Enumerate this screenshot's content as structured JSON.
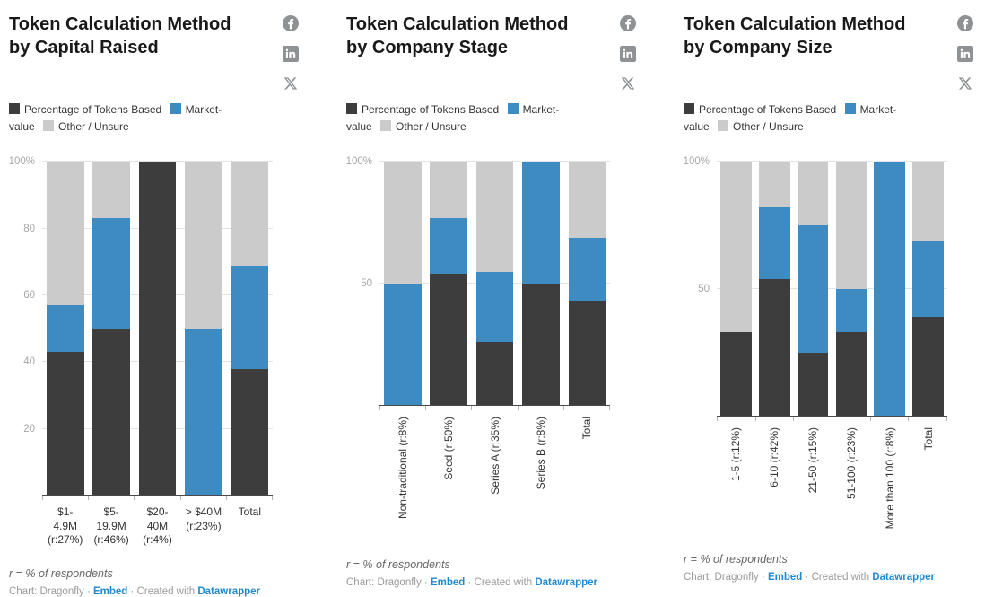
{
  "colors": {
    "tokens_based": "#3d3d3d",
    "market_value": "#3d8bc0",
    "other_unsure": "#cbcbcb",
    "link": "#2089cf",
    "icon_gray": "#8f9295"
  },
  "icons": {
    "facebook": "facebook-circle-icon",
    "linkedin": "linkedin-square-icon",
    "x": "x-logo-icon"
  },
  "charts": [
    {
      "title": "Token Calculation Method\nby Capital Raised",
      "label_rotation": 0,
      "footer": {
        "note": "r = % of respondents",
        "source": "Chart: Dragonfly",
        "sep": "·",
        "embed": "Embed",
        "created_with": "Created with",
        "tool": "Datawrapper"
      },
      "chart_data": {
        "type": "bar",
        "stacked": true,
        "title": "Token Calculation Method by Capital Raised",
        "unit": "%",
        "ylim": [
          0,
          100
        ],
        "legend_position": "top",
        "grid": "horizontal",
        "y_ticks": [
          {
            "value": 100,
            "label": "100%"
          },
          {
            "value": 80,
            "label": "80"
          },
          {
            "value": 60,
            "label": "60"
          },
          {
            "value": 40,
            "label": "40"
          },
          {
            "value": 20,
            "label": "20"
          }
        ],
        "categories": [
          "$1-\n4.9M\n(r:27%)",
          "$5-\n19.9M\n(r:46%)",
          "$20-\n40M\n(r:4%)",
          "> $40M\n(r:23%)",
          "Total"
        ],
        "series": [
          {
            "name": "Percentage of Tokens Based",
            "color_key": "tokens_based",
            "values": [
              43,
              50,
              100,
              0,
              38
            ]
          },
          {
            "name": "Market-value",
            "color_key": "market_value",
            "values": [
              14,
              33,
              0,
              50,
              31
            ]
          },
          {
            "name": "Other / Unsure",
            "color_key": "other_unsure",
            "values": [
              43,
              17,
              0,
              50,
              31
            ]
          }
        ]
      }
    },
    {
      "title": "Token Calculation Method\nby Company Stage",
      "label_rotation": 90,
      "footer": {
        "note": "r = % of respondents",
        "source": "Chart: Dragonfly",
        "sep": "·",
        "embed": "Embed",
        "created_with": "Created with",
        "tool": "Datawrapper"
      },
      "chart_data": {
        "type": "bar",
        "stacked": true,
        "title": "Token Calculation Method by Company Stage",
        "unit": "%",
        "ylim": [
          0,
          100
        ],
        "legend_position": "top",
        "grid": "horizontal",
        "y_ticks": [
          {
            "value": 100,
            "label": "100%"
          },
          {
            "value": 50,
            "label": "50"
          }
        ],
        "categories": [
          "Non-traditional (r:8%)",
          "Seed (r:50%)",
          "Series A (r:35%)",
          "Series B (r:8%)",
          "Total"
        ],
        "series": [
          {
            "name": "Percentage of Tokens Based",
            "color_key": "tokens_based",
            "values": [
              0,
              54,
              26,
              50,
              43
            ]
          },
          {
            "name": "Market-value",
            "color_key": "market_value",
            "values": [
              50,
              23,
              29,
              50,
              26
            ]
          },
          {
            "name": "Other / Unsure",
            "color_key": "other_unsure",
            "values": [
              50,
              23,
              45,
              0,
              31
            ]
          }
        ]
      }
    },
    {
      "title": "Token Calculation Method\nby Company Size",
      "label_rotation": 90,
      "footer": {
        "note": "r = % of respondents",
        "source": "Chart: Dragonfly",
        "sep": "·",
        "embed": "Embed",
        "created_with": "Created with",
        "tool": "Datawrapper"
      },
      "chart_data": {
        "type": "bar",
        "stacked": true,
        "title": "Token Calculation Method by Company Size",
        "unit": "%",
        "ylim": [
          0,
          100
        ],
        "legend_position": "top",
        "grid": "horizontal",
        "y_ticks": [
          {
            "value": 100,
            "label": "100%"
          },
          {
            "value": 50,
            "label": "50"
          }
        ],
        "categories": [
          "1-5 (r:12%)",
          "6-10 (r:42%)",
          "21-50 (r:15%)",
          "51-100 (r:23%)",
          "More than 100 (r:8%)",
          "Total"
        ],
        "series": [
          {
            "name": "Percentage of Tokens Based",
            "color_key": "tokens_based",
            "values": [
              33,
              54,
              25,
              33,
              0,
              39
            ]
          },
          {
            "name": "Market-value",
            "color_key": "market_value",
            "values": [
              0,
              28,
              50,
              17,
              100,
              30
            ]
          },
          {
            "name": "Other / Unsure",
            "color_key": "other_unsure",
            "values": [
              67,
              18,
              25,
              50,
              0,
              31
            ]
          }
        ]
      }
    }
  ]
}
